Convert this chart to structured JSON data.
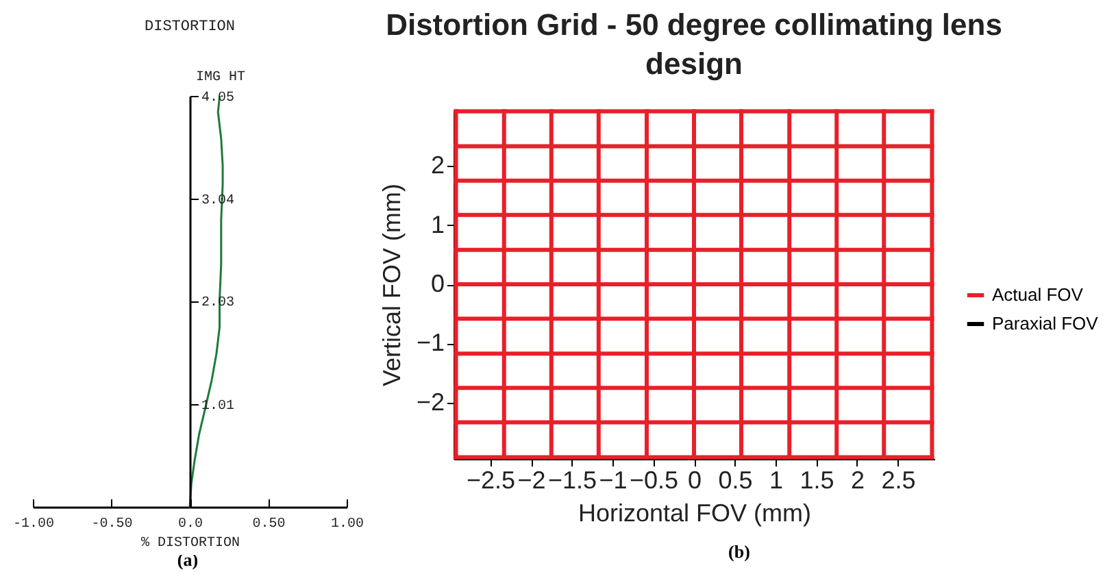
{
  "chart_data": [
    {
      "type": "line",
      "title": "DISTORTION",
      "xlabel": "% DISTORTION",
      "ylabel": "IMG HT",
      "x": [
        0,
        0.01,
        0.03,
        0.06,
        0.1,
        0.14,
        0.17,
        0.19,
        0.19,
        0.2,
        0.2,
        0.21,
        0.21,
        0.2,
        0.18,
        0.19
      ],
      "series": [
        {
          "color": "#1e7b3a",
          "values": [
            0,
            0.23,
            0.45,
            0.72,
            0.98,
            1.25,
            1.51,
            1.77,
            2.04,
            2.39,
            2.83,
            3.18,
            3.36,
            3.63,
            3.89,
            4.04
          ]
        }
      ],
      "xlim": [
        -1,
        1
      ],
      "xticks": [
        {
          "value": -1,
          "label": "-1.00"
        },
        {
          "value": -0.5,
          "label": "-0.50"
        },
        {
          "value": 0,
          "label": "0.0"
        },
        {
          "value": 0.5,
          "label": "0.50"
        },
        {
          "value": 1,
          "label": "1.00"
        }
      ],
      "ylim": [
        0,
        4.05
      ],
      "yticks": [
        1.01,
        2.03,
        3.04,
        4.05
      ],
      "annotations": [
        "(a)"
      ]
    },
    {
      "type": "line",
      "title": "Distortion Grid - 50 degree collimating lens design",
      "xlabel": "Horizontal FOV (mm)",
      "ylabel": "Vertical FOV (mm)",
      "series": [
        {
          "name": "Actual FOV",
          "color": "#e8202a",
          "x": [
            -2.92,
            2.92
          ],
          "values": [
            -2.92,
            -2.92
          ]
        },
        {
          "color": "#e8202a",
          "x": [
            -2.92,
            2.92
          ],
          "values": [
            -2.33,
            -2.33
          ]
        },
        {
          "color": "#e8202a",
          "x": [
            -2.92,
            2.92
          ],
          "values": [
            -1.75,
            -1.75
          ]
        },
        {
          "color": "#e8202a",
          "x": [
            -2.92,
            2.92
          ],
          "values": [
            -1.17,
            -1.17
          ]
        },
        {
          "color": "#e8202a",
          "x": [
            -2.92,
            2.92
          ],
          "values": [
            -0.58,
            -0.58
          ]
        },
        {
          "color": "#e8202a",
          "x": [
            -2.92,
            2.92
          ],
          "values": [
            0,
            0
          ]
        },
        {
          "color": "#e8202a",
          "x": [
            -2.92,
            2.92
          ],
          "values": [
            0.58,
            0.58
          ]
        },
        {
          "color": "#e8202a",
          "x": [
            -2.92,
            2.92
          ],
          "values": [
            1.17,
            1.17
          ]
        },
        {
          "color": "#e8202a",
          "x": [
            -2.92,
            2.92
          ],
          "values": [
            1.75,
            1.75
          ]
        },
        {
          "color": "#e8202a",
          "x": [
            -2.92,
            2.92
          ],
          "values": [
            2.33,
            2.33
          ]
        },
        {
          "color": "#e8202a",
          "x": [
            -2.92,
            2.92
          ],
          "values": [
            2.92,
            2.92
          ]
        },
        {
          "color": "#e8202a",
          "x": [
            -2.92,
            -2.92
          ],
          "values": [
            -2.92,
            2.92
          ]
        },
        {
          "color": "#e8202a",
          "x": [
            -2.33,
            -2.33
          ],
          "values": [
            -2.92,
            2.92
          ]
        },
        {
          "color": "#e8202a",
          "x": [
            -1.75,
            -1.75
          ],
          "values": [
            -2.92,
            2.92
          ]
        },
        {
          "color": "#e8202a",
          "x": [
            -1.17,
            -1.17
          ],
          "values": [
            -2.92,
            2.92
          ]
        },
        {
          "color": "#e8202a",
          "x": [
            -0.58,
            -0.58
          ],
          "values": [
            -2.92,
            2.92
          ]
        },
        {
          "color": "#e8202a",
          "x": [
            0,
            0
          ],
          "values": [
            -2.92,
            2.92
          ]
        },
        {
          "color": "#e8202a",
          "x": [
            0.58,
            0.58
          ],
          "values": [
            -2.92,
            2.92
          ]
        },
        {
          "color": "#e8202a",
          "x": [
            1.17,
            1.17
          ],
          "values": [
            -2.92,
            2.92
          ]
        },
        {
          "color": "#e8202a",
          "x": [
            1.75,
            1.75
          ],
          "values": [
            -2.92,
            2.92
          ]
        },
        {
          "color": "#e8202a",
          "x": [
            2.33,
            2.33
          ],
          "values": [
            -2.92,
            2.92
          ]
        },
        {
          "color": "#e8202a",
          "x": [
            2.92,
            2.92
          ],
          "values": [
            -2.92,
            2.92
          ]
        },
        {
          "name": "Paraxial FOV",
          "color": "#000000"
        }
      ],
      "xlim": [
        -2.95,
        2.95
      ],
      "xticks": [
        {
          "value": -2.5,
          "label": "−2.5"
        },
        {
          "value": -2,
          "label": "−2"
        },
        {
          "value": -1.5,
          "label": "−1.5"
        },
        {
          "value": -1,
          "label": "−1"
        },
        {
          "value": -0.5,
          "label": "−0.5"
        },
        0,
        0.5,
        1,
        1.5,
        2,
        2.5
      ],
      "ylim": [
        -2.95,
        2.95
      ],
      "yticks": [
        {
          "value": -2,
          "label": "−2"
        },
        {
          "value": -1,
          "label": "−1"
        },
        0,
        1,
        2
      ],
      "legend": "right",
      "annotations": [
        "(b)"
      ]
    }
  ]
}
